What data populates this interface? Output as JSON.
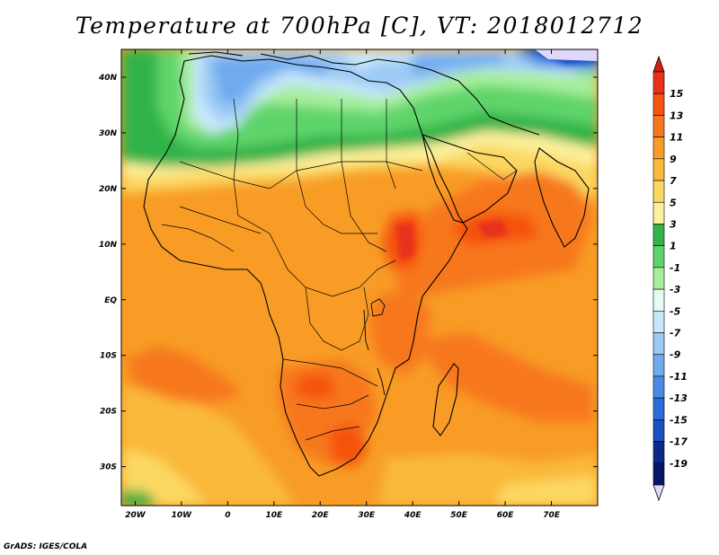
{
  "title": "Temperature at 700hPa [C], VT: 2018012712",
  "credit": "GrADS: IGES/COLA",
  "map": {
    "projection": "lat-lon",
    "lon_range": [
      -23,
      80
    ],
    "lat_range": [
      -37,
      45
    ],
    "x_ticks": [
      "20W",
      "10W",
      "0",
      "10E",
      "20E",
      "30E",
      "40E",
      "50E",
      "60E",
      "70E"
    ],
    "x_tick_values": [
      -20,
      -10,
      0,
      10,
      20,
      30,
      40,
      50,
      60,
      70
    ],
    "y_ticks": [
      "40N",
      "30N",
      "20N",
      "10N",
      "EQ",
      "10S",
      "20S",
      "30S"
    ],
    "y_tick_values": [
      40,
      30,
      20,
      10,
      0,
      -10,
      -20,
      -30
    ]
  },
  "colorbar": {
    "labels": [
      "15",
      "13",
      "11",
      "9",
      "7",
      "5",
      "3",
      "1",
      "-1",
      "-3",
      "-5",
      "-7",
      "-9",
      "-11",
      "-13",
      "-15",
      "-17",
      "-19"
    ],
    "colors": [
      "#e8321a",
      "#f5530f",
      "#f7781c",
      "#f89c26",
      "#f9b93a",
      "#fbd862",
      "#fcf09c",
      "#33b34a",
      "#5ed46a",
      "#a6ee9c",
      "#e6fbf4",
      "#c7e7fb",
      "#9ccaf5",
      "#6faaef",
      "#4a8ae6",
      "#2c6cdc",
      "#1c4fc4",
      "#0a2a8a",
      "#05166a"
    ],
    "over_color": "#d41c10",
    "under_color": "#e0d8f8"
  }
}
